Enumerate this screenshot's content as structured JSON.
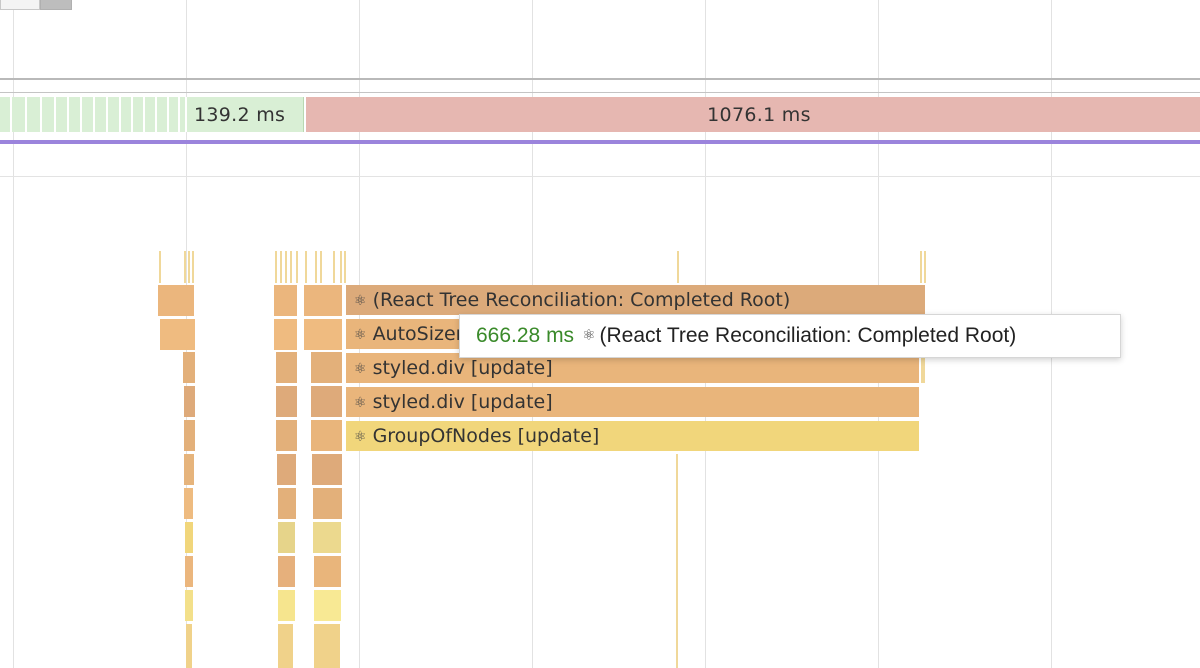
{
  "timeline": {
    "segments": [
      {
        "label": "139.2 ms",
        "kind": "idle"
      },
      {
        "label": "1076.1 ms",
        "kind": "long-task"
      }
    ]
  },
  "flamegraph": {
    "rows": [
      {
        "label": "(React Tree Reconciliation: Completed Root)",
        "color": "#dcaa7a"
      },
      {
        "label": "AutoSizer [update]",
        "color": "#e9b57b"
      },
      {
        "label": "styled.div [update]",
        "color": "#e9b57b"
      },
      {
        "label": "styled.div [update]",
        "color": "#e9b57b"
      },
      {
        "label": "GroupOfNodes [update]",
        "color": "#f1d67b"
      }
    ]
  },
  "tooltip": {
    "duration": "666.28 ms",
    "label": "(React Tree Reconciliation: Completed Root)"
  },
  "icons": {
    "react": "⚛"
  },
  "colors": {
    "idle_segment": "#d9efd5",
    "long_task_segment": "#e6b7b1",
    "interaction_track": "#9b84dc",
    "duration_text": "#3a8a2a"
  }
}
